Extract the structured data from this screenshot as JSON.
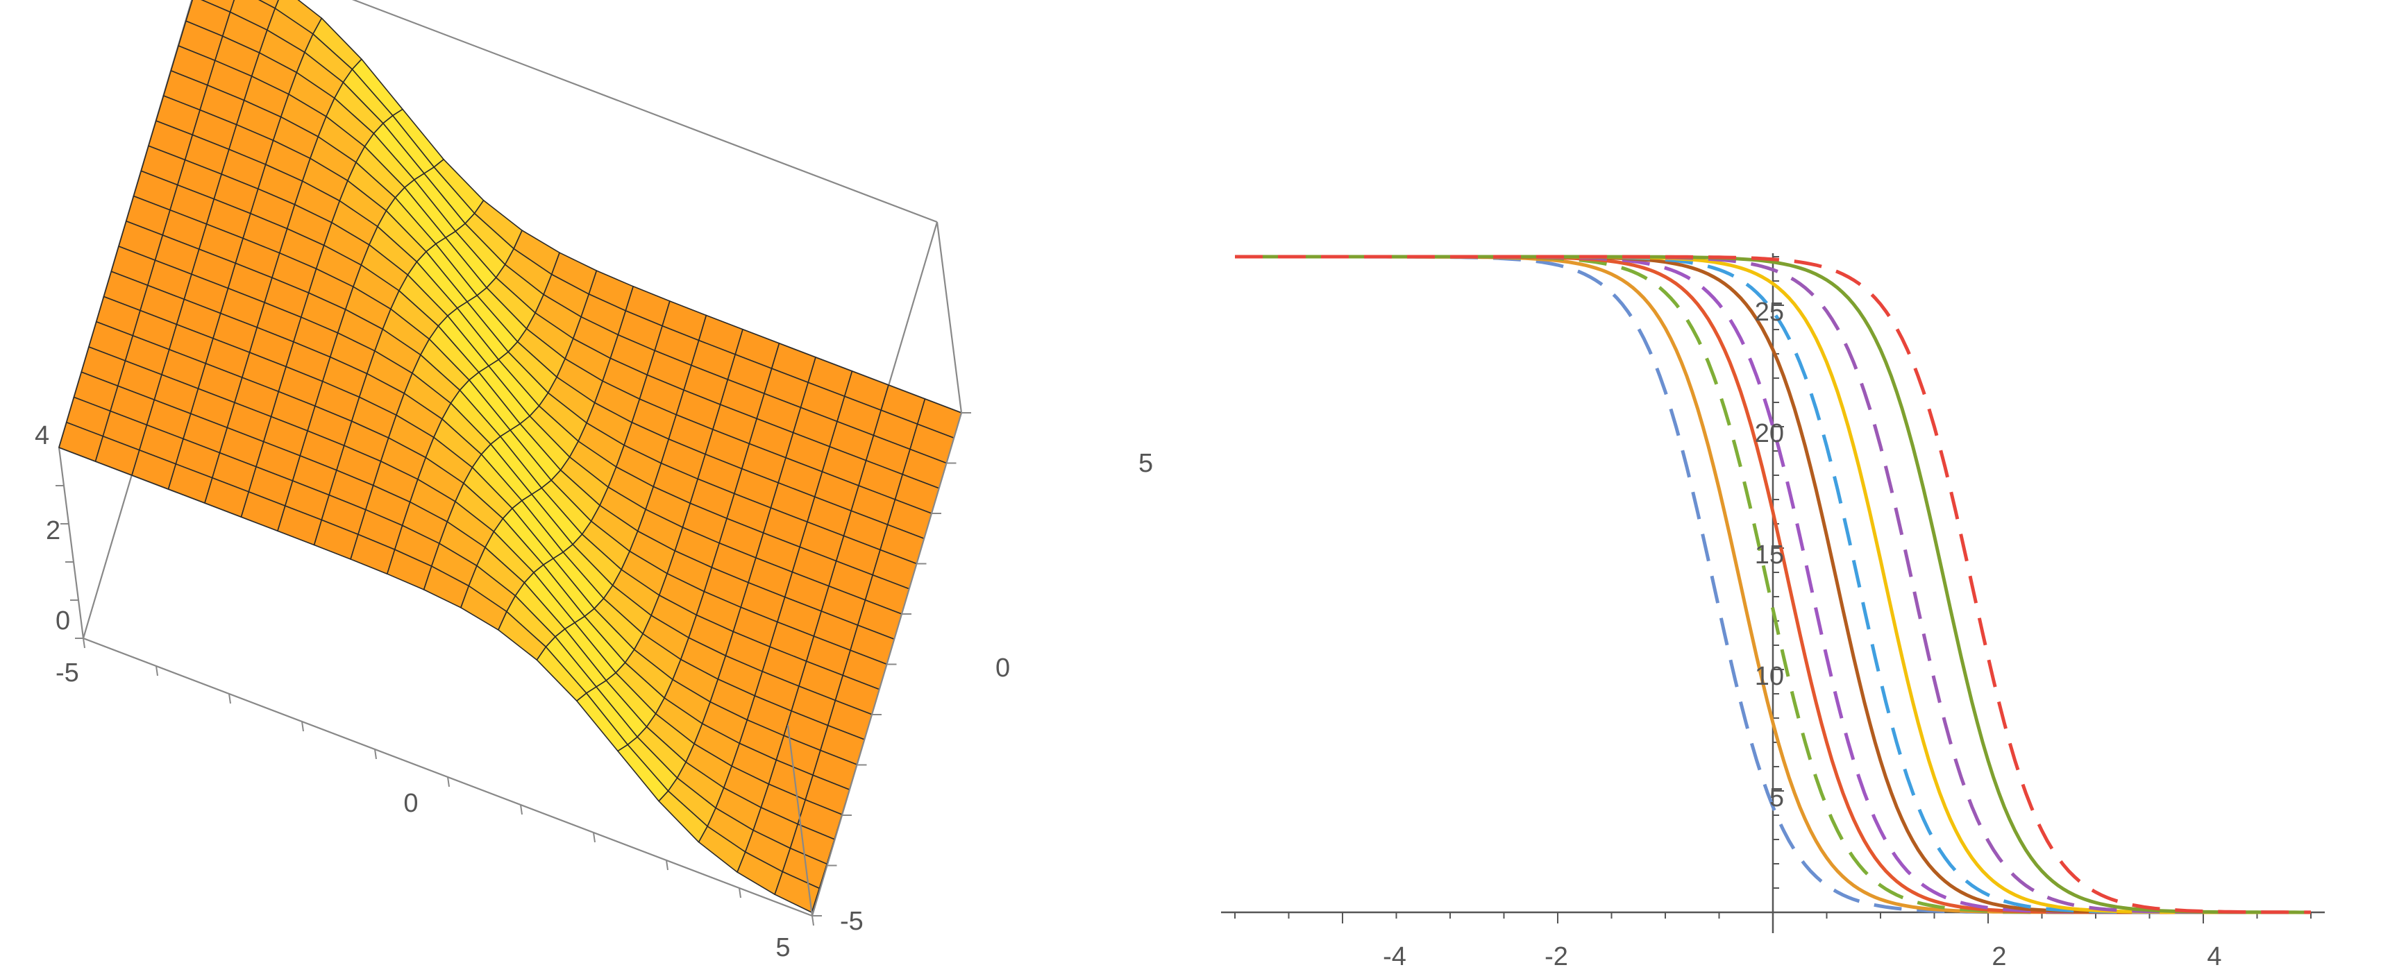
{
  "chart_data": [
    {
      "type": "surface3d",
      "title": "",
      "x_ticks": [
        "-5",
        "0",
        "5"
      ],
      "y_ticks": [
        "-5",
        "0",
        "5"
      ],
      "z_ticks": [
        "0",
        "2",
        "4"
      ],
      "xlim": [
        -5,
        5
      ],
      "ylim": [
        -5,
        5
      ],
      "zlim": [
        0,
        5
      ],
      "function": "z = 2.5 * (1 - tanh(0.8 * (x + 0.5 * y)))",
      "mesh": 20,
      "colors": {
        "low": "#ff9a1f",
        "high": "#ffe533",
        "mesh": "#2a2a2a",
        "box": "#888888"
      }
    },
    {
      "type": "line",
      "title": "",
      "xlabel": "",
      "ylabel": "",
      "xlim": [
        -5,
        5
      ],
      "ylim": [
        0,
        27
      ],
      "x_ticks": [
        "-4",
        "-2",
        "2",
        "4"
      ],
      "y_ticks": [
        "5",
        "10",
        "15",
        "20",
        "25"
      ],
      "plateau": 27,
      "series": [
        {
          "center": -0.55,
          "style": "dashed",
          "color": "#6a8fd0"
        },
        {
          "center": -0.3,
          "style": "solid",
          "color": "#e3972a"
        },
        {
          "center": -0.05,
          "style": "dashed",
          "color": "#7fae37"
        },
        {
          "center": 0.15,
          "style": "solid",
          "color": "#e4572e"
        },
        {
          "center": 0.35,
          "style": "dashed",
          "color": "#9f57c2"
        },
        {
          "center": 0.6,
          "style": "solid",
          "color": "#b35c1e"
        },
        {
          "center": 0.8,
          "style": "dashed",
          "color": "#3f9fe0"
        },
        {
          "center": 1.05,
          "style": "solid",
          "color": "#f3c10a"
        },
        {
          "center": 1.3,
          "style": "dashed",
          "color": "#9b59b6"
        },
        {
          "center": 1.6,
          "style": "solid",
          "color": "#7ea02f"
        },
        {
          "center": 1.85,
          "style": "dashed",
          "color": "#e8443a"
        }
      ]
    }
  ]
}
